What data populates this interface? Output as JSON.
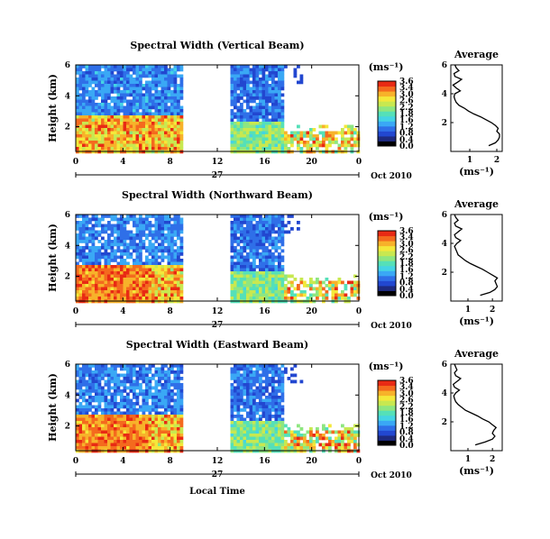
{
  "figure": {
    "xlabel": "Local Time",
    "date_label": "Oct 2010",
    "day_label": "27"
  },
  "palette": [
    "#000000",
    "#1e2a80",
    "#2247d0",
    "#2f6fe8",
    "#3aa8f5",
    "#44d4e4",
    "#55e0b8",
    "#8ee680",
    "#c8e850",
    "#f4e83a",
    "#f7b22a",
    "#f46a1e",
    "#e82a14"
  ],
  "colorbar": {
    "unit_label": "(ms⁻¹)",
    "tick_labels": [
      "3.6",
      "3.4",
      "3.0",
      "2.6",
      "2.2",
      "1.8",
      "1.6",
      "1.2",
      "0.8",
      "0.4",
      "0.0"
    ]
  },
  "chart_data": [
    {
      "type": "heatmap",
      "title": "Spectral Width (Vertical Beam)",
      "ylabel": "Height (km)",
      "xticks": [
        "0",
        "4",
        "8",
        "12",
        "16",
        "20",
        "0"
      ],
      "yticks": [
        "2",
        "4",
        "6"
      ],
      "xlim": [
        0,
        24
      ],
      "ylim": [
        0.4,
        6
      ],
      "gap_hours": [
        9.3,
        13.1
      ],
      "profile": {
        "title": "Average",
        "xlabel": "(ms⁻¹)",
        "xticks": [
          "1",
          "2"
        ],
        "yticks": [
          "2",
          "4",
          "6"
        ],
        "xlim": [
          0.3,
          2.2
        ],
        "heights": [
          0.4,
          0.6,
          0.8,
          1.0,
          1.2,
          1.4,
          1.6,
          1.8,
          2.0,
          2.2,
          2.4,
          2.6,
          2.8,
          3.0,
          3.2,
          3.4,
          3.6,
          3.8,
          4.0,
          4.2,
          4.4,
          4.6,
          4.8,
          5.0,
          5.2,
          5.4,
          5.6,
          5.8,
          6.0
        ],
        "values": [
          1.7,
          1.95,
          2.05,
          2.1,
          2.1,
          2.0,
          2.05,
          1.95,
          1.8,
          1.6,
          1.4,
          1.15,
          0.95,
          0.8,
          0.6,
          0.5,
          0.45,
          0.42,
          0.45,
          0.65,
          0.5,
          0.38,
          0.55,
          0.7,
          0.45,
          0.42,
          0.6,
          0.5,
          0.45
        ]
      }
    },
    {
      "type": "heatmap",
      "title": "Spectral Width (Northward Beam)",
      "ylabel": "Height (km)",
      "xticks": [
        "0",
        "4",
        "8",
        "12",
        "16",
        "20",
        "0"
      ],
      "yticks": [
        "2",
        "4",
        "6"
      ],
      "xlim": [
        0,
        24
      ],
      "ylim": [
        0.4,
        6
      ],
      "gap_hours": [
        9.3,
        13.1
      ],
      "profile": {
        "title": "Average",
        "xlabel": "(ms⁻¹)",
        "xticks": [
          "1",
          "2"
        ],
        "yticks": [
          "2",
          "4",
          "6"
        ],
        "xlim": [
          0.3,
          2.4
        ],
        "heights": [
          0.4,
          0.6,
          0.8,
          1.0,
          1.2,
          1.4,
          1.6,
          1.8,
          2.0,
          2.2,
          2.4,
          2.6,
          2.8,
          3.0,
          3.2,
          3.4,
          3.6,
          3.8,
          4.0,
          4.2,
          4.4,
          4.6,
          4.8,
          5.0,
          5.2,
          5.4,
          5.6,
          5.8,
          6.0
        ],
        "values": [
          1.5,
          1.9,
          2.1,
          2.2,
          2.15,
          2.1,
          2.2,
          2.0,
          1.8,
          1.6,
          1.35,
          1.1,
          0.9,
          0.75,
          0.6,
          0.55,
          0.5,
          0.45,
          0.55,
          0.7,
          0.5,
          0.45,
          0.6,
          0.75,
          0.5,
          0.45,
          0.6,
          0.5,
          0.45
        ]
      }
    },
    {
      "type": "heatmap",
      "title": "Spectral Width (Eastward Beam)",
      "ylabel": "Height (km)",
      "xticks": [
        "0",
        "4",
        "8",
        "12",
        "16",
        "20",
        "0"
      ],
      "yticks": [
        "2",
        "4",
        "6"
      ],
      "xlim": [
        0,
        24
      ],
      "ylim": [
        0.4,
        6
      ],
      "gap_hours": [
        9.3,
        13.1
      ],
      "profile": {
        "title": "Average",
        "xlabel": "(ms⁻¹)",
        "xticks": [
          "1",
          "2"
        ],
        "yticks": [
          "2",
          "4",
          "6"
        ],
        "xlim": [
          0.3,
          2.4
        ],
        "heights": [
          0.4,
          0.6,
          0.8,
          1.0,
          1.2,
          1.4,
          1.6,
          1.8,
          2.0,
          2.2,
          2.4,
          2.6,
          2.8,
          3.0,
          3.2,
          3.4,
          3.6,
          3.8,
          4.0,
          4.2,
          4.4,
          4.6,
          4.8,
          5.0,
          5.2,
          5.4,
          5.6,
          5.8,
          6.0
        ],
        "values": [
          1.3,
          1.7,
          2.0,
          2.1,
          2.0,
          2.05,
          2.15,
          2.0,
          1.85,
          1.6,
          1.4,
          1.15,
          0.9,
          0.75,
          0.6,
          0.5,
          0.45,
          0.42,
          0.5,
          0.65,
          0.45,
          0.4,
          0.55,
          0.7,
          0.5,
          0.45,
          0.55,
          0.5,
          0.45
        ]
      }
    }
  ]
}
